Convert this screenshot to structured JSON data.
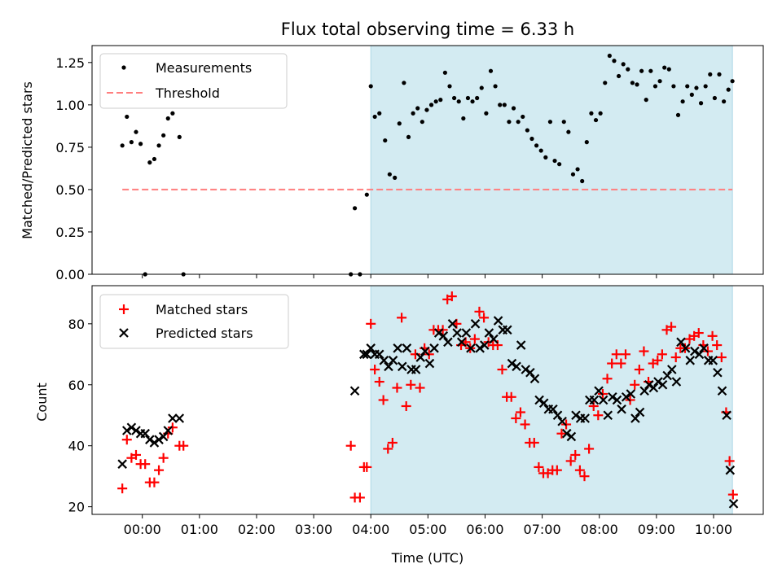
{
  "chart_data": {
    "title": "Flux total observing time = 6.33 h",
    "xlabel": "Time (UTC)",
    "x_unit": "hours since 00:00 UTC",
    "xlim": [
      -0.88,
      10.87
    ],
    "xticks": [
      0,
      1,
      2,
      3,
      4,
      5,
      6,
      7,
      8,
      9,
      10
    ],
    "xtick_labels": [
      "00:00",
      "01:00",
      "02:00",
      "03:00",
      "04:00",
      "05:00",
      "06:00",
      "07:00",
      "08:00",
      "09:00",
      "10:00"
    ],
    "highlight": {
      "x_start": 4.0,
      "x_end": 10.33,
      "color": "#add8e6"
    },
    "colors": {
      "measurements": "#000000",
      "threshold": "#ff7f7f",
      "matched": "#ff0000",
      "predicted": "#000000",
      "band": "#d3ebf2"
    },
    "top": {
      "type": "scatter",
      "ylabel": "Matched/Predicted stars",
      "ylim": [
        0,
        1.35
      ],
      "yticks": [
        0.0,
        0.25,
        0.5,
        0.75,
        1.0,
        1.25
      ],
      "ytick_labels": [
        "0.00",
        "0.25",
        "0.50",
        "0.75",
        "1.00",
        "1.25"
      ],
      "legend": [
        "Measurements",
        "Threshold"
      ],
      "threshold": {
        "value": 0.5,
        "x_start": -0.35,
        "x_end": 10.33
      },
      "measurements": {
        "x": [
          -0.35,
          -0.27,
          -0.19,
          -0.11,
          -0.03,
          0.05,
          0.13,
          0.21,
          0.29,
          0.37,
          0.45,
          0.53,
          0.65,
          0.72,
          3.65,
          3.72,
          3.81,
          3.93,
          4.0,
          4.07,
          4.15,
          4.25,
          4.33,
          4.42,
          4.5,
          4.58,
          4.66,
          4.74,
          4.82,
          4.9,
          4.98,
          5.06,
          5.14,
          5.22,
          5.3,
          5.38,
          5.46,
          5.54,
          5.62,
          5.7,
          5.78,
          5.86,
          5.94,
          6.02,
          6.1,
          6.18,
          6.26,
          6.34,
          6.42,
          6.5,
          6.58,
          6.66,
          6.74,
          6.82,
          6.9,
          6.98,
          7.06,
          7.14,
          7.22,
          7.3,
          7.38,
          7.46,
          7.54,
          7.62,
          7.7,
          7.78,
          7.86,
          7.94,
          8.02,
          8.1,
          8.18,
          8.26,
          8.34,
          8.42,
          8.5,
          8.58,
          8.66,
          8.74,
          8.82,
          8.9,
          8.98,
          9.06,
          9.14,
          9.22,
          9.3,
          9.38,
          9.46,
          9.54,
          9.62,
          9.7,
          9.78,
          9.86,
          9.94,
          10.02,
          10.1,
          10.18,
          10.26,
          10.33
        ],
        "y": [
          0.76,
          0.93,
          0.78,
          0.84,
          0.77,
          0.0,
          0.66,
          0.68,
          0.76,
          0.82,
          0.92,
          0.95,
          0.81,
          0.0,
          0.0,
          0.39,
          0.0,
          0.47,
          1.11,
          0.93,
          0.95,
          0.79,
          0.59,
          0.57,
          0.89,
          1.13,
          0.81,
          0.95,
          0.98,
          0.9,
          0.97,
          1.0,
          1.02,
          1.03,
          1.19,
          1.11,
          1.04,
          1.02,
          0.92,
          1.04,
          1.02,
          1.04,
          1.1,
          0.95,
          1.2,
          1.11,
          1.0,
          1.0,
          0.9,
          0.98,
          0.9,
          0.93,
          0.85,
          0.8,
          0.76,
          0.73,
          0.69,
          0.9,
          0.67,
          0.65,
          0.9,
          0.84,
          0.59,
          0.62,
          0.55,
          0.78,
          0.95,
          0.91,
          0.95,
          1.13,
          1.29,
          1.26,
          1.17,
          1.24,
          1.21,
          1.13,
          1.12,
          1.2,
          1.03,
          1.2,
          1.11,
          1.14,
          1.22,
          1.21,
          1.11,
          0.94,
          1.02,
          1.11,
          1.06,
          1.1,
          1.01,
          1.11,
          1.18,
          1.04,
          1.18,
          1.02,
          1.09,
          1.14
        ]
      }
    },
    "bottom": {
      "type": "scatter",
      "ylabel": "Count",
      "ylim": [
        17.5,
        92.5
      ],
      "yticks": [
        20,
        40,
        60,
        80
      ],
      "ytick_labels": [
        "20",
        "40",
        "60",
        "80"
      ],
      "legend": [
        "Matched stars",
        "Predicted stars"
      ],
      "matched": {
        "x": [
          -0.35,
          -0.27,
          -0.19,
          -0.11,
          -0.03,
          0.05,
          0.13,
          0.21,
          0.29,
          0.37,
          0.45,
          0.53,
          0.65,
          0.72,
          3.65,
          3.72,
          3.81,
          3.88,
          3.93,
          4.0,
          4.07,
          4.15,
          4.22,
          4.3,
          4.38,
          4.46,
          4.54,
          4.62,
          4.7,
          4.78,
          4.86,
          4.94,
          5.02,
          5.1,
          5.18,
          5.26,
          5.34,
          5.42,
          5.5,
          5.58,
          5.66,
          5.74,
          5.82,
          5.9,
          5.98,
          6.06,
          6.14,
          6.22,
          6.3,
          6.38,
          6.46,
          6.54,
          6.62,
          6.7,
          6.78,
          6.86,
          6.94,
          7.02,
          7.1,
          7.18,
          7.26,
          7.34,
          7.42,
          7.5,
          7.58,
          7.66,
          7.74,
          7.82,
          7.9,
          7.98,
          8.06,
          8.14,
          8.22,
          8.3,
          8.38,
          8.46,
          8.54,
          8.62,
          8.7,
          8.78,
          8.86,
          8.94,
          9.02,
          9.1,
          9.18,
          9.26,
          9.34,
          9.42,
          9.5,
          9.58,
          9.66,
          9.74,
          9.82,
          9.9,
          9.98,
          10.06,
          10.14,
          10.22,
          10.28,
          10.34
        ],
        "y": [
          26,
          42,
          36,
          37,
          34,
          34,
          28,
          28,
          32,
          36,
          44,
          46,
          40,
          40,
          40,
          23,
          23,
          33,
          33,
          80,
          65,
          61,
          55,
          39,
          41,
          59,
          82,
          53,
          60,
          70,
          59,
          72,
          70,
          78,
          78,
          78,
          88,
          89,
          80,
          73,
          74,
          72,
          75,
          84,
          82,
          74,
          73,
          73,
          65,
          56,
          56,
          49,
          51,
          47,
          41,
          41,
          33,
          31,
          31,
          32,
          32,
          44,
          47,
          35,
          37,
          32,
          30,
          39,
          53,
          50,
          57,
          62,
          67,
          70,
          67,
          70,
          55,
          60,
          65,
          71,
          61,
          67,
          68,
          70,
          78,
          79,
          69,
          72,
          72,
          75,
          76,
          77,
          73,
          71,
          76,
          73,
          69,
          51,
          35,
          24
        ]
      },
      "predicted": {
        "x": [
          -0.35,
          -0.27,
          -0.19,
          -0.11,
          -0.03,
          0.05,
          0.13,
          0.21,
          0.29,
          0.37,
          0.45,
          0.53,
          0.65,
          3.72,
          3.88,
          3.93,
          4.0,
          4.07,
          4.15,
          4.23,
          4.31,
          4.39,
          4.47,
          4.55,
          4.63,
          4.71,
          4.79,
          4.87,
          4.95,
          5.03,
          5.11,
          5.19,
          5.27,
          5.35,
          5.43,
          5.51,
          5.59,
          5.67,
          5.75,
          5.83,
          5.91,
          5.99,
          6.07,
          6.15,
          6.23,
          6.31,
          6.39,
          6.47,
          6.55,
          6.63,
          6.71,
          6.79,
          6.87,
          6.95,
          7.03,
          7.11,
          7.19,
          7.27,
          7.35,
          7.43,
          7.51,
          7.59,
          7.67,
          7.75,
          7.83,
          7.91,
          7.99,
          8.07,
          8.15,
          8.23,
          8.31,
          8.39,
          8.47,
          8.55,
          8.63,
          8.71,
          8.79,
          8.87,
          8.95,
          9.03,
          9.11,
          9.19,
          9.27,
          9.35,
          9.43,
          9.51,
          9.59,
          9.67,
          9.75,
          9.83,
          9.91,
          9.99,
          10.07,
          10.15,
          10.23,
          10.29,
          10.35
        ],
        "y": [
          34,
          45,
          46,
          45,
          44,
          44,
          42,
          41,
          42,
          43,
          45,
          49,
          49,
          58,
          70,
          70,
          72,
          70,
          70,
          68,
          66,
          68,
          72,
          66,
          72,
          65,
          65,
          69,
          71,
          67,
          72,
          77,
          76,
          74,
          80,
          77,
          74,
          77,
          72,
          80,
          72,
          73,
          77,
          75,
          81,
          78,
          78,
          67,
          66,
          73,
          65,
          64,
          62,
          55,
          54,
          52,
          52,
          50,
          48,
          44,
          43,
          50,
          49,
          49,
          55,
          55,
          58,
          55,
          50,
          56,
          55,
          52,
          56,
          57,
          49,
          51,
          58,
          60,
          59,
          61,
          60,
          63,
          65,
          61,
          74,
          72,
          68,
          71,
          70,
          72,
          68,
          68,
          64,
          58,
          50,
          32,
          21
        ]
      }
    }
  }
}
